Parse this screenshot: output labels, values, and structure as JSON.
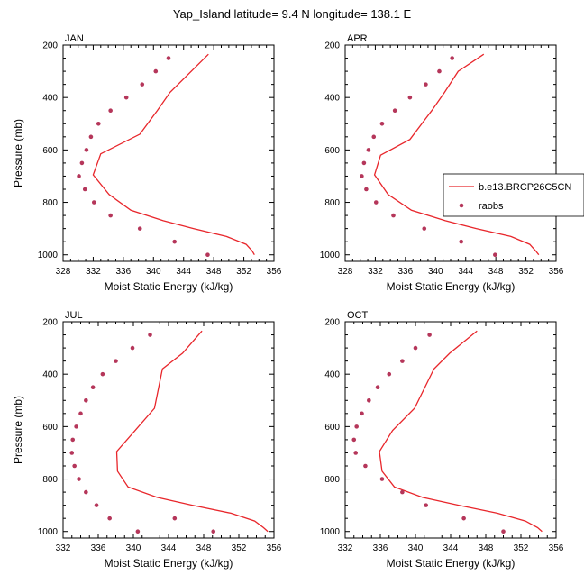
{
  "figure": {
    "title": "Yap_Island  latitude= 9.4 N longitude= 138.1 E"
  },
  "legend": {
    "model_label": "b.e13.BRCP26C5CN",
    "obs_label": "raobs",
    "placement": "right, between top-right and bottom-right panels"
  },
  "colors": {
    "model_line": "#e8262b",
    "obs_marker": "#b5365a",
    "axes": "#000000",
    "background": "#ffffff"
  },
  "chart_data": [
    {
      "type": "line",
      "panel": "JAN",
      "xlabel": "Moist Static Energy (kJ/kg)",
      "ylabel": "Pressure (mb)",
      "xlim": [
        328,
        356
      ],
      "xticks": [
        328,
        332,
        336,
        340,
        344,
        348,
        352,
        356
      ],
      "ylim": [
        200,
        1025
      ],
      "yticks": [
        200,
        400,
        600,
        800,
        1000
      ],
      "y_reversed": true,
      "series": [
        {
          "name": "b.e13.BRCP26C5CN",
          "kind": "line",
          "x": [
            347.3,
            342.2,
            340.5,
            338.2,
            333.0,
            332.0,
            334.1,
            337.0,
            341.3,
            345.3,
            349.7,
            352.3,
            353.1,
            353.4
          ],
          "y": [
            235,
            380,
            450,
            540,
            615,
            695,
            770,
            830,
            870,
            900,
            930,
            960,
            985,
            1000
          ]
        },
        {
          "name": "raobs",
          "kind": "marker",
          "x": [
            342.0,
            340.3,
            338.5,
            336.4,
            334.3,
            332.7,
            331.7,
            331.1,
            330.5,
            330.1,
            330.9,
            332.1,
            334.3,
            338.2,
            342.8,
            347.2
          ],
          "y": [
            250,
            300,
            350,
            400,
            450,
            500,
            550,
            600,
            650,
            700,
            750,
            800,
            850,
            900,
            950,
            1000
          ]
        }
      ]
    },
    {
      "type": "line",
      "panel": "APR",
      "xlabel": "Moist Static Energy (kJ/kg)",
      "ylabel": "",
      "xlim": [
        328,
        356
      ],
      "xticks": [
        328,
        332,
        336,
        340,
        344,
        348,
        352,
        356
      ],
      "ylim": [
        200,
        1025
      ],
      "yticks": [
        200,
        400,
        600,
        800,
        1000
      ],
      "y_reversed": true,
      "series": [
        {
          "name": "b.e13.BRCP26C5CN",
          "kind": "line",
          "x": [
            346.4,
            343.0,
            341.2,
            339.5,
            338.7,
            336.6,
            332.7,
            331.9,
            333.7,
            336.8,
            341.3,
            345.4,
            350.0,
            352.5,
            353.3,
            353.7
          ],
          "y": [
            235,
            300,
            380,
            450,
            480,
            560,
            620,
            695,
            770,
            830,
            870,
            900,
            930,
            960,
            985,
            1000
          ]
        },
        {
          "name": "raobs",
          "kind": "marker",
          "x": [
            342.2,
            340.5,
            338.7,
            336.6,
            334.6,
            332.9,
            331.8,
            331.1,
            330.5,
            330.2,
            330.8,
            332.1,
            334.4,
            338.5,
            343.4,
            347.9
          ],
          "y": [
            250,
            300,
            350,
            400,
            450,
            500,
            550,
            600,
            650,
            700,
            750,
            800,
            850,
            900,
            950,
            1000
          ]
        }
      ]
    },
    {
      "type": "line",
      "panel": "JUL",
      "xlabel": "Moist Static Energy (kJ/kg)",
      "ylabel": "Pressure (mb)",
      "xlim": [
        332,
        356
      ],
      "xticks": [
        332,
        336,
        340,
        344,
        348,
        352,
        356
      ],
      "ylim": [
        200,
        1025
      ],
      "yticks": [
        200,
        400,
        600,
        800,
        1000
      ],
      "y_reversed": true,
      "series": [
        {
          "name": "b.e13.BRCP26C5CN",
          "kind": "line",
          "x": [
            347.8,
            345.6,
            343.3,
            342.4,
            340.2,
            338.1,
            338.2,
            339.4,
            342.7,
            346.7,
            351.1,
            353.8,
            354.8,
            355.3
          ],
          "y": [
            235,
            320,
            380,
            530,
            615,
            695,
            770,
            830,
            870,
            900,
            930,
            960,
            985,
            1000
          ]
        },
        {
          "name": "raobs",
          "kind": "marker",
          "x": [
            341.9,
            339.9,
            338.0,
            336.5,
            335.4,
            334.6,
            334.0,
            333.5,
            333.1,
            333.0,
            333.3,
            333.8,
            334.6,
            335.8,
            337.3,
            340.5,
            344.7,
            349.1
          ],
          "y": [
            250,
            300,
            350,
            400,
            450,
            500,
            550,
            600,
            650,
            700,
            750,
            800,
            850,
            900,
            950,
            1000,
            950,
            1000
          ]
        }
      ]
    },
    {
      "type": "line",
      "panel": "OCT",
      "xlabel": "Moist Static Energy (kJ/kg)",
      "ylabel": "",
      "xlim": [
        332,
        356
      ],
      "xticks": [
        332,
        336,
        340,
        344,
        348,
        352,
        356
      ],
      "ylim": [
        200,
        1025
      ],
      "yticks": [
        200,
        400,
        600,
        800,
        1000
      ],
      "y_reversed": true,
      "series": [
        {
          "name": "b.e13.BRCP26C5CN",
          "kind": "line",
          "x": [
            347.0,
            343.9,
            342.1,
            339.9,
            337.4,
            335.9,
            336.2,
            337.6,
            340.8,
            344.9,
            349.3,
            352.5,
            353.9,
            354.4
          ],
          "y": [
            235,
            320,
            380,
            530,
            615,
            695,
            770,
            830,
            870,
            900,
            930,
            960,
            985,
            1000
          ]
        },
        {
          "name": "raobs",
          "kind": "marker",
          "x": [
            341.6,
            340.0,
            338.5,
            337.0,
            335.7,
            334.7,
            333.9,
            333.3,
            333.0,
            333.2,
            334.3,
            336.2,
            338.5,
            341.2,
            345.5,
            350.0
          ],
          "y": [
            250,
            300,
            350,
            400,
            450,
            500,
            550,
            600,
            650,
            700,
            750,
            800,
            850,
            900,
            950,
            1000
          ]
        }
      ]
    }
  ]
}
